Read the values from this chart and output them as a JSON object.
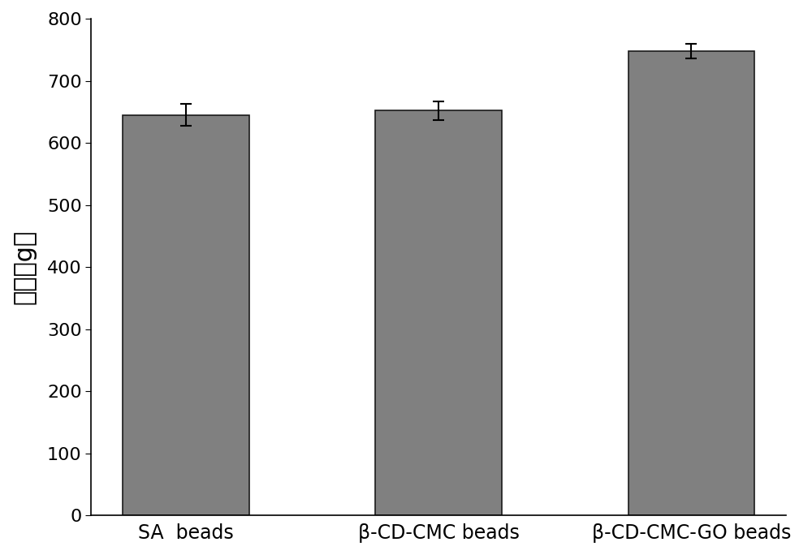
{
  "categories": [
    "SA  beads",
    "β-CD-CMC beads",
    "β-CD-CMC-GO beads"
  ],
  "values": [
    645,
    652,
    748
  ],
  "errors": [
    18,
    15,
    12
  ],
  "bar_color": "#808080",
  "bar_edgecolor": "#1a1a1a",
  "bar_width": 0.5,
  "ylabel": "硬度（g）",
  "ylim": [
    0,
    800
  ],
  "yticks": [
    0,
    100,
    200,
    300,
    400,
    500,
    600,
    700,
    800
  ],
  "ylabel_fontsize": 22,
  "tick_fontsize": 16,
  "xlabel_fontsize": 17,
  "background_color": "#ffffff",
  "spine_color": "#000000"
}
